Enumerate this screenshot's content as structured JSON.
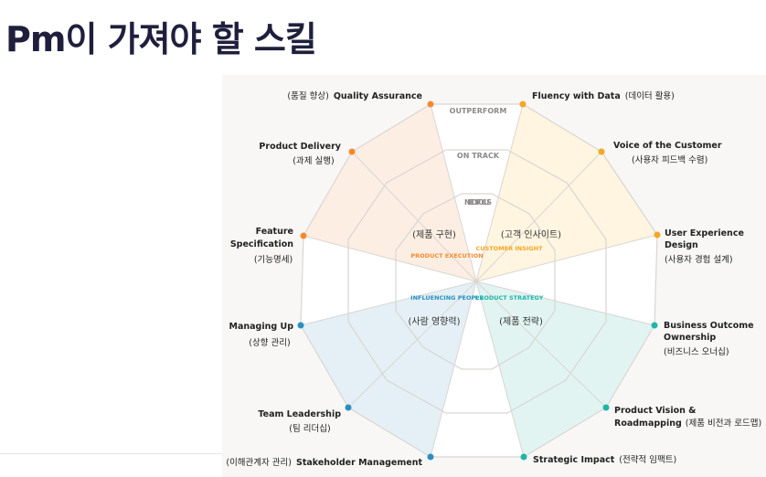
{
  "page": {
    "title": "Pm이 가져야 할 스킬"
  },
  "rings": {
    "outer": "OUTPERFORM",
    "middle": "ON TRACK",
    "inner": "NEEDS FOCUS"
  },
  "categories": {
    "execution": {
      "ko": "(제품 구현)",
      "en": "PRODUCT EXECUTION",
      "color": "#f58a2c"
    },
    "insight": {
      "ko": "(고객 인사이트)",
      "en": "CUSTOMER INSIGHT",
      "color": "#f5a623"
    },
    "influencing": {
      "ko": "(사람 영향력)",
      "en": "INFLUENCING PEOPLE",
      "color": "#2a8fc0"
    },
    "strategy": {
      "ko": "(제품 전략)",
      "en": "PRODUCT STRATEGY",
      "color": "#1fb5a8"
    }
  },
  "skills": [
    {
      "en": "Quality Assurance",
      "ko": "(품질 향상)"
    },
    {
      "en": "Fluency with Data",
      "ko": "(데이터 활용)"
    },
    {
      "en": "Voice of the Customer",
      "ko": "(사용자 피드백 수렴)"
    },
    {
      "en": "User Experience Design",
      "ko": "(사용자 경험 설계)"
    },
    {
      "en": "Business Outcome Ownership",
      "ko": "(비즈니스 오너십)"
    },
    {
      "en": "Product Vision & Roadmapping",
      "ko": "(제품 비전과 로드맵)"
    },
    {
      "en": "Strategic Impact",
      "ko": "(전략적 임팩트)"
    },
    {
      "en": "Stakeholder Management",
      "ko": "(이해관계자 관리)"
    },
    {
      "en": "Team Leadership",
      "ko": "(팀 리더십)"
    },
    {
      "en": "Managing Up",
      "ko": "(상향 관리)"
    },
    {
      "en": "Feature Specification",
      "ko": "(기능명세)"
    },
    {
      "en": "Product Delivery",
      "ko": "(과제 실행)"
    }
  ]
}
